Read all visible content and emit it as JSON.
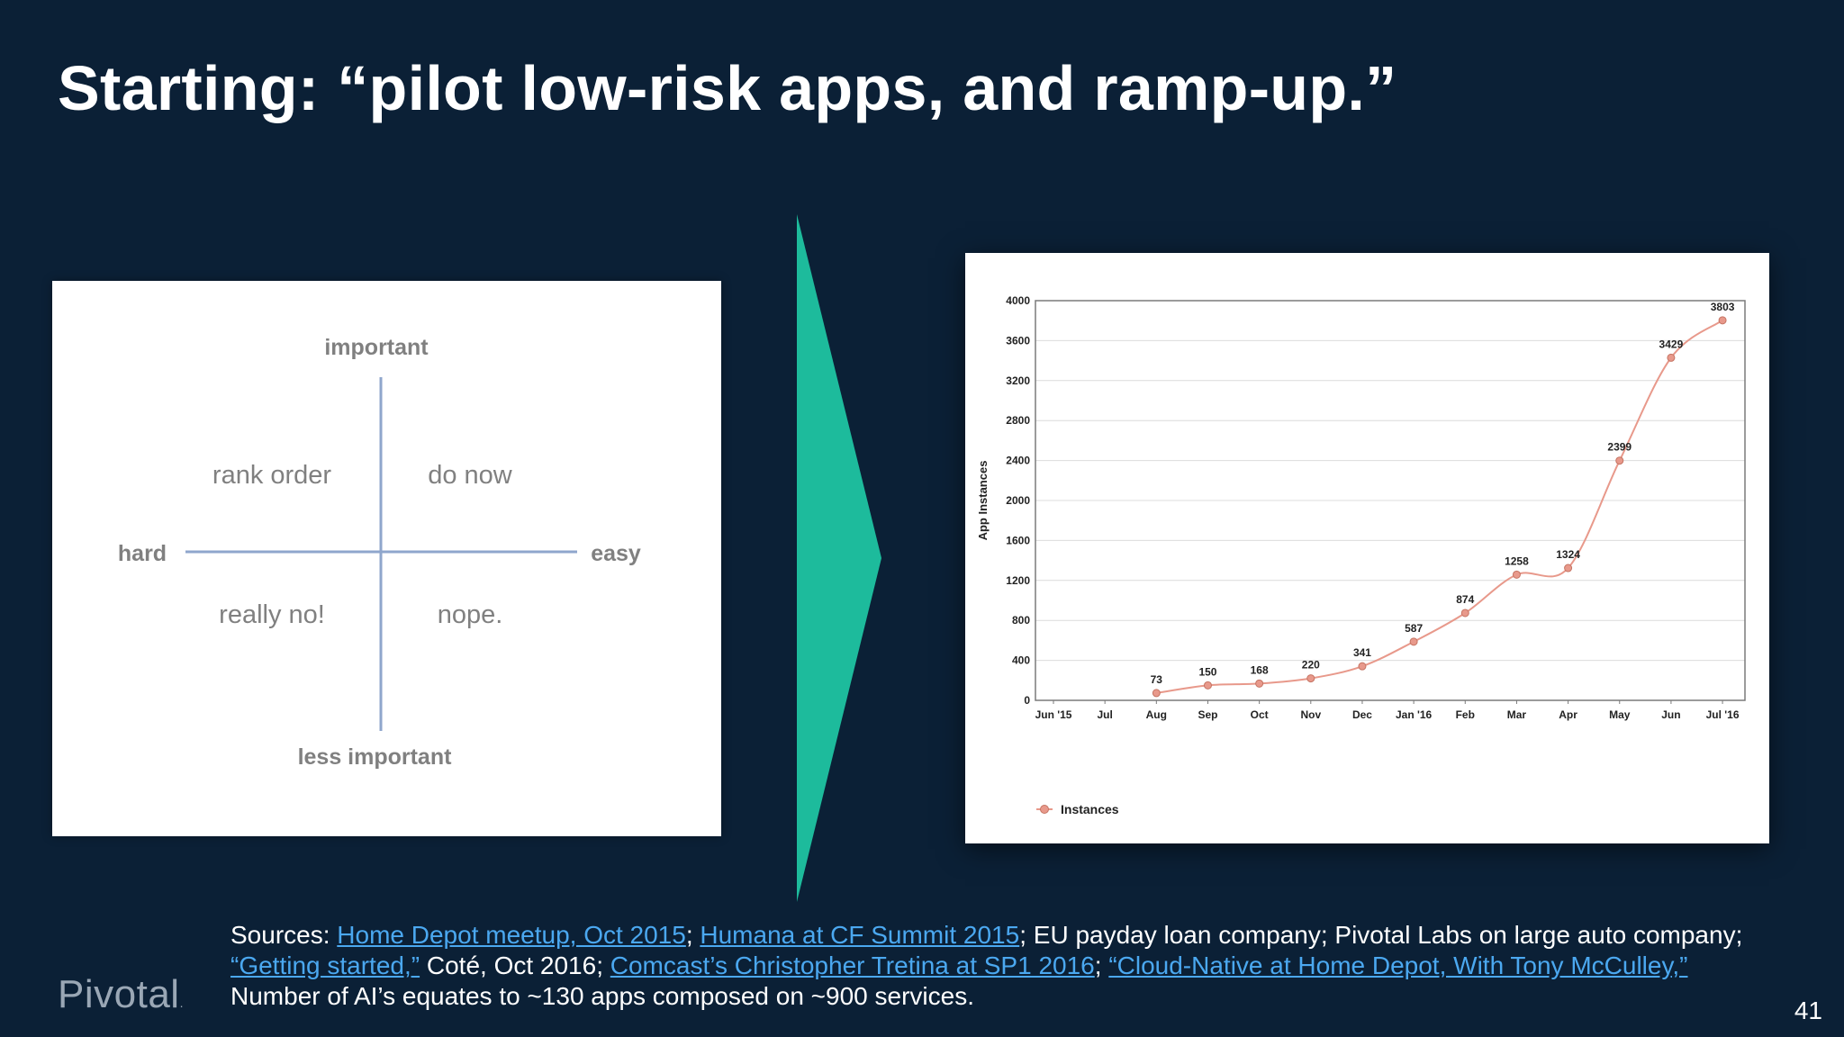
{
  "slide": {
    "title": "Starting: “pilot low-risk apps, and ramp-up.”",
    "page_number": "41",
    "logo_text": "Pivotal",
    "colors": {
      "background": "#0b2036",
      "arrow": "#1dbb9c",
      "link": "#4ba8f0",
      "series": "#e8998b"
    }
  },
  "matrix": {
    "top": "important",
    "bottom": "less important",
    "left": "hard",
    "right": "easy",
    "top_left": "rank order",
    "top_right": "do now",
    "bottom_left": "really no!",
    "bottom_right": "nope."
  },
  "chart_data": {
    "type": "line",
    "categories": [
      "Jun '15",
      "Jul",
      "Aug",
      "Sep",
      "Oct",
      "Nov",
      "Dec",
      "Jan '16",
      "Feb",
      "Mar",
      "Apr",
      "May",
      "Jun",
      "Jul '16"
    ],
    "series": [
      {
        "name": "Instances",
        "values": [
          null,
          null,
          73,
          150,
          168,
          220,
          341,
          587,
          874,
          1258,
          1324,
          2399,
          3429,
          3803
        ]
      }
    ],
    "ylabel": "App Instances",
    "ylim": [
      0,
      4000
    ],
    "yticks": [
      0,
      400,
      800,
      1200,
      1600,
      2000,
      2400,
      2800,
      3200,
      3600,
      4000
    ],
    "grid": true,
    "legend": "bottom-left"
  },
  "sources": {
    "prefix": "Sources: ",
    "link1": "Home Depot meetup, Oct 2015",
    "sep1": "; ",
    "link2": "Humana at CF Summit 2015",
    "text1": "; EU payday loan company; Pivotal Labs on large auto company; ",
    "link3": "“Getting started,”",
    "text2": " Coté, Oct 2016; ",
    "link4": "Comcast’s Christopher Tretina at SP1 2016",
    "sep2": "; ",
    "link5": "“Cloud-Native at Home Depot, With Tony McCulley,”",
    "line3": "Number of AI’s equates to ~130 apps composed on ~900 services."
  }
}
